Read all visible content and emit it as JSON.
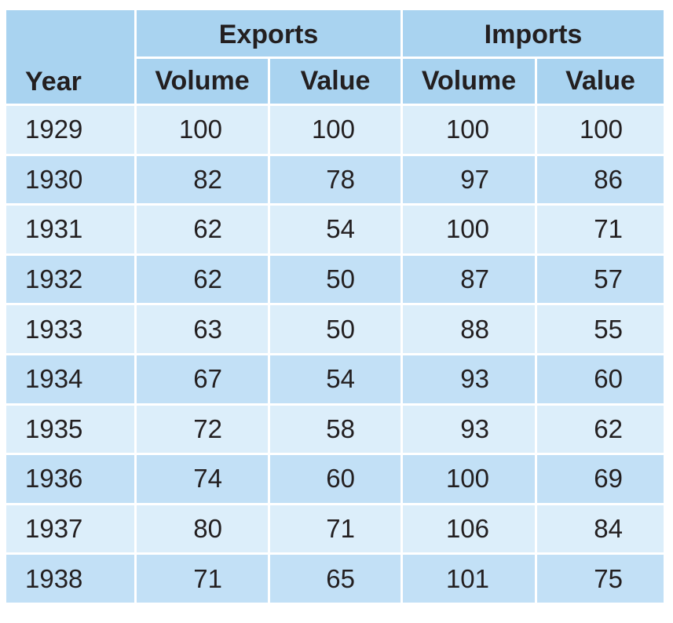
{
  "table": {
    "headers": {
      "year": "Year",
      "exports": "Exports",
      "imports": "Imports",
      "volume": "Volume",
      "value": "Value"
    },
    "rows": [
      {
        "year": "1929",
        "exports_volume": "100",
        "exports_value": "100",
        "imports_volume": "100",
        "imports_value": "100"
      },
      {
        "year": "1930",
        "exports_volume": "82",
        "exports_value": "78",
        "imports_volume": "97",
        "imports_value": "86"
      },
      {
        "year": "1931",
        "exports_volume": "62",
        "exports_value": "54",
        "imports_volume": "100",
        "imports_value": "71"
      },
      {
        "year": "1932",
        "exports_volume": "62",
        "exports_value": "50",
        "imports_volume": "87",
        "imports_value": "57"
      },
      {
        "year": "1933",
        "exports_volume": "63",
        "exports_value": "50",
        "imports_volume": "88",
        "imports_value": "55"
      },
      {
        "year": "1934",
        "exports_volume": "67",
        "exports_value": "54",
        "imports_volume": "93",
        "imports_value": "60"
      },
      {
        "year": "1935",
        "exports_volume": "72",
        "exports_value": "58",
        "imports_volume": "93",
        "imports_value": "62"
      },
      {
        "year": "1936",
        "exports_volume": "74",
        "exports_value": "60",
        "imports_volume": "100",
        "imports_value": "69"
      },
      {
        "year": "1937",
        "exports_volume": "80",
        "exports_value": "71",
        "imports_volume": "106",
        "imports_value": "84"
      },
      {
        "year": "1938",
        "exports_volume": "71",
        "exports_value": "65",
        "imports_volume": "101",
        "imports_value": "75"
      }
    ]
  },
  "colors": {
    "header_bg": "#a9d3f0",
    "row_light": "#dceefa",
    "row_dark": "#c2e0f6",
    "text": "#231f20"
  }
}
